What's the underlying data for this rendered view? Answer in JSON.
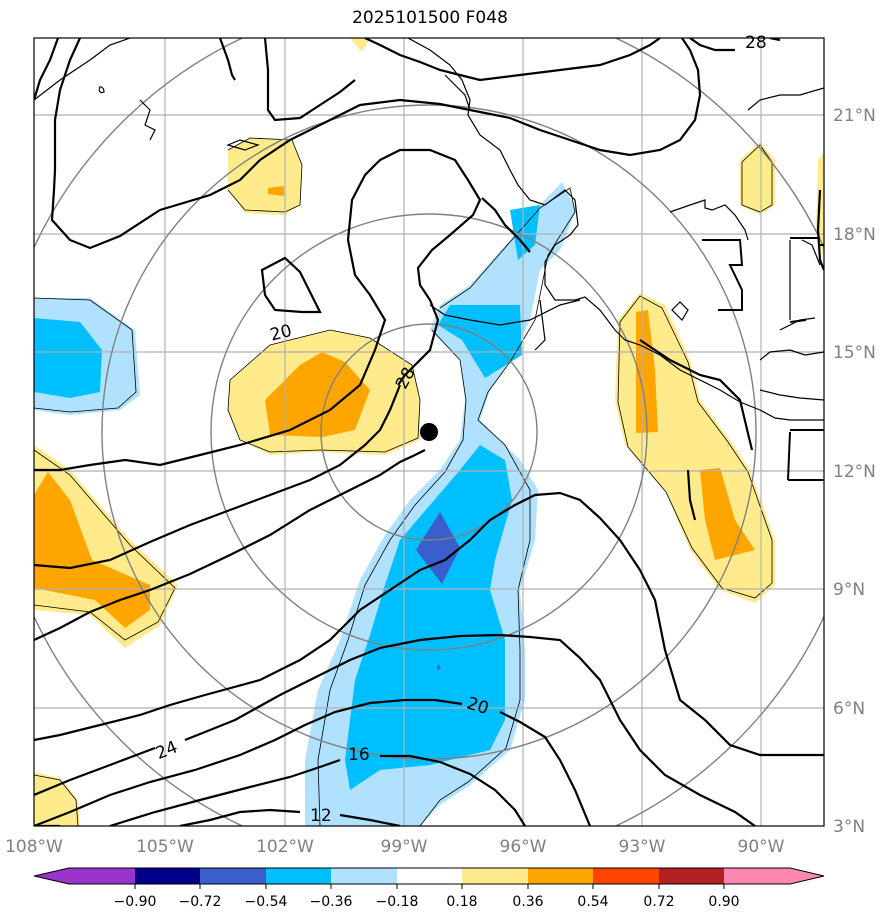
{
  "title": "2025101500 F048",
  "map": {
    "lon_labels": [
      "108°W",
      "105°W",
      "102°W",
      "99°W",
      "96°W",
      "93°W",
      "90°W"
    ],
    "lat_labels": [
      "21°N",
      "18°N",
      "15°N",
      "12°N",
      "9°N",
      "6°N",
      "3°N"
    ],
    "contour_labels": [
      "28",
      "20",
      "28",
      "24",
      "20",
      "16",
      "12"
    ],
    "storm_marker": "storm-center"
  },
  "colorbar": {
    "tick_labels": [
      "−0.90",
      "−0.72",
      "−0.54",
      "−0.36",
      "−0.18",
      "0.18",
      "0.36",
      "0.54",
      "0.72",
      "0.90"
    ],
    "colors": {
      "lt_-0.90": "#9933cc",
      "-0.90_-0.72": "#00008b",
      "-0.72_-0.54": "#3a5fcd",
      "-0.54_-0.36": "#00bfff",
      "-0.36_-0.18": "#b0e2ff",
      "-0.18_0.18": "#ffffff",
      "0.18_0.36": "#ffeb8c",
      "0.36_0.54": "#ffa500",
      "0.54_0.72": "#ff4500",
      "0.72_0.90": "#b22222",
      "gt_0.90": "#ff88b3"
    }
  }
}
